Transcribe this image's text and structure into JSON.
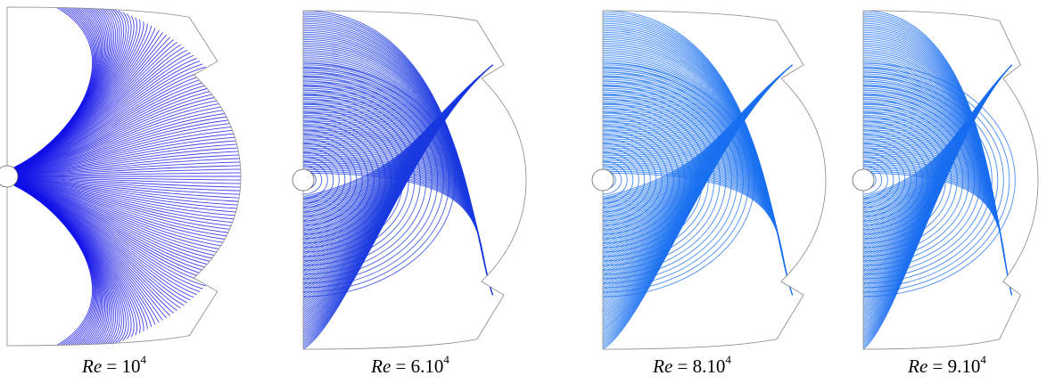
{
  "panels": [
    {
      "caption": {
        "variable": "Re",
        "relation": "=",
        "mantissa": "10",
        "exponent": "4"
      }
    },
    {
      "caption": {
        "variable": "Re",
        "relation": "=",
        "mantissa": "6.10",
        "exponent": "4"
      }
    },
    {
      "caption": {
        "variable": "Re",
        "relation": "=",
        "mantissa": "8.10",
        "exponent": "4"
      }
    },
    {
      "caption": {
        "variable": "Re",
        "relation": "=",
        "mantissa": "9.10",
        "exponent": "4"
      }
    }
  ]
}
